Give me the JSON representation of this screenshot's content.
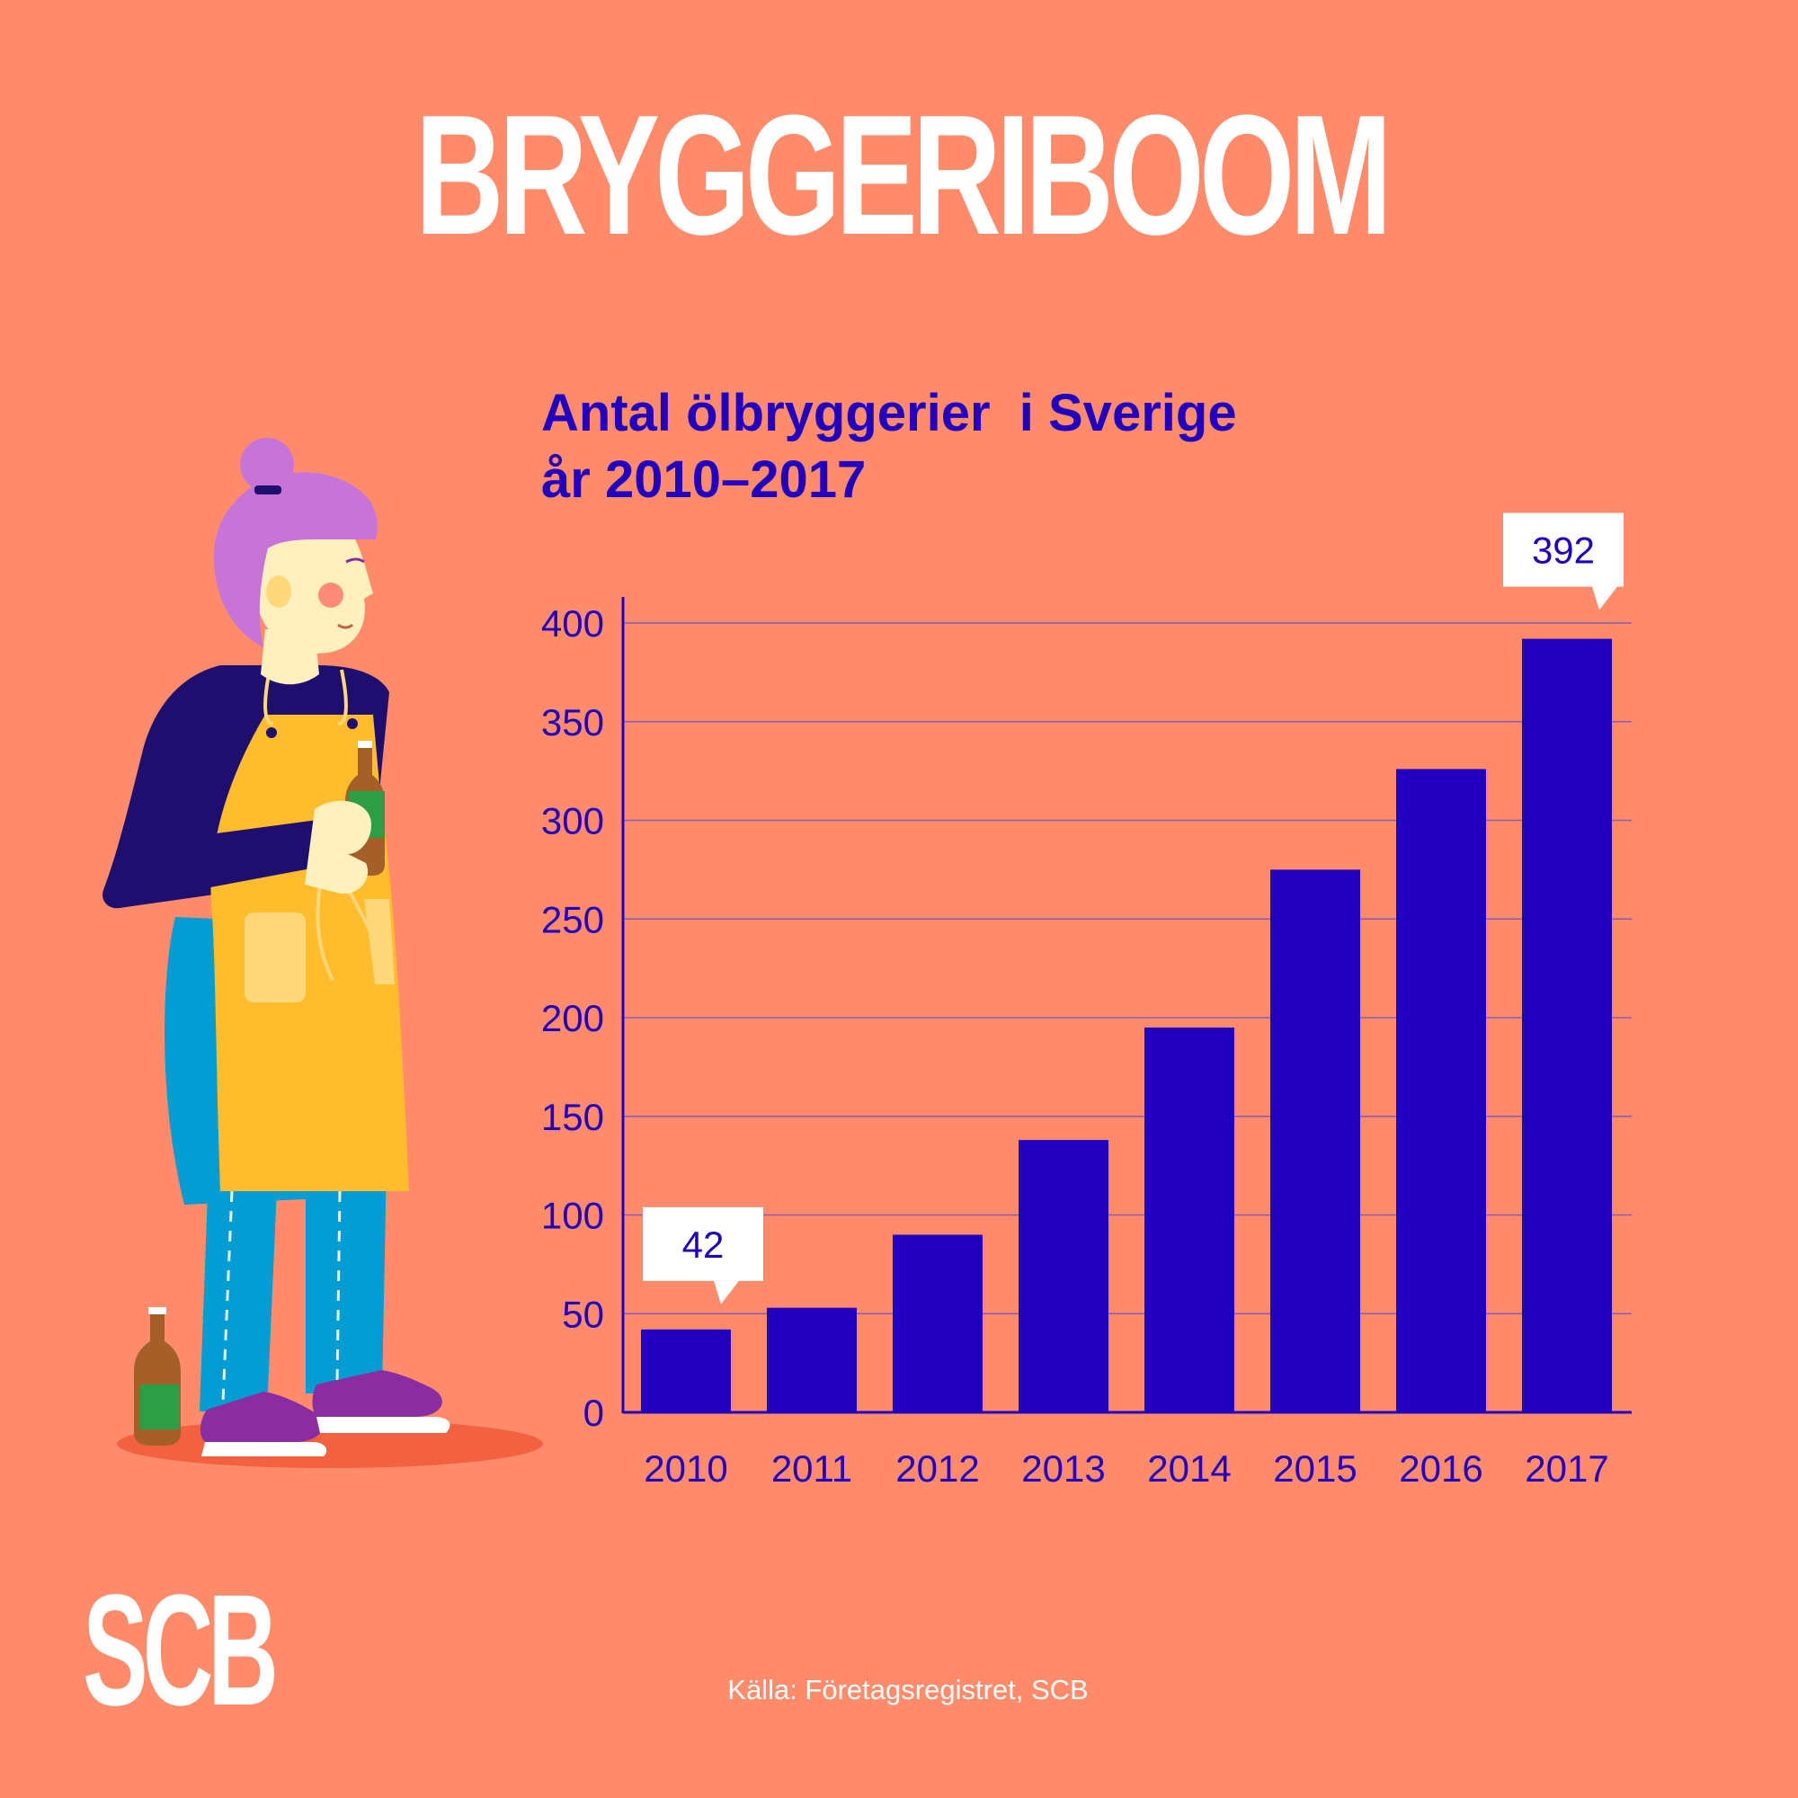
{
  "headline": "BRYGGERIBOOM",
  "logo_text": "SCB",
  "source": "Källa: Företagsregistret, SCB",
  "colors": {
    "background": "#FF8B6A",
    "bar": "#2100C0",
    "text_accent": "#2100C0",
    "grid": "#8C5BB0",
    "callout_bg": "#FFFFFF"
  },
  "chart_data": {
    "type": "bar",
    "title_lines": [
      "Antal ölbryggerier  i Sverige",
      "år 2010–2017"
    ],
    "xlabel": "",
    "ylabel": "",
    "categories": [
      "2010",
      "2011",
      "2012",
      "2013",
      "2014",
      "2015",
      "2016",
      "2017"
    ],
    "values": [
      42,
      53,
      90,
      138,
      195,
      275,
      326,
      392
    ],
    "ylim": [
      0,
      400
    ],
    "yticks": [
      0,
      50,
      100,
      150,
      200,
      250,
      300,
      350,
      400
    ],
    "grid": true,
    "annotations": [
      {
        "category": "2010",
        "text": "42"
      },
      {
        "category": "2017",
        "text": "392"
      }
    ]
  }
}
